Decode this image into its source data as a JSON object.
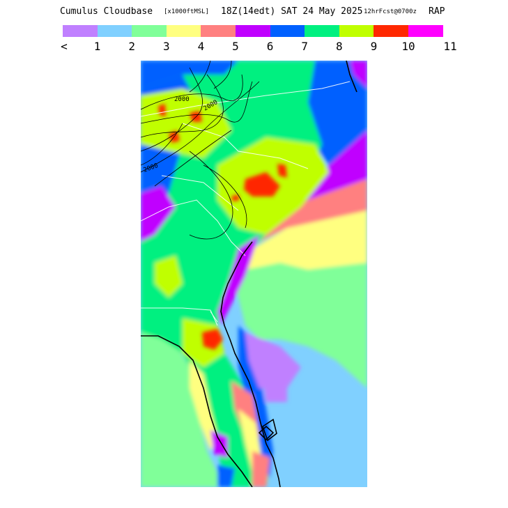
{
  "title": {
    "product": "Cumulus Cloudbase",
    "units": "[x1000ftMSL]",
    "valid": "18Z(14edt) SAT 24 May 2025",
    "forecast": "12hrFcst@0700z",
    "model": "RAP"
  },
  "legend": {
    "colors": [
      "#c080ff",
      "#80d0ff",
      "#80ff99",
      "#ffff80",
      "#ff8080",
      "#c000ff",
      "#0060ff",
      "#00f080",
      "#c0ff00",
      "#ff2800",
      "#ff00ff"
    ],
    "ticks": [
      "<",
      "1",
      "2",
      "3",
      "4",
      "5",
      "6",
      "7",
      "8",
      "9",
      "10",
      "11"
    ]
  },
  "map": {
    "contour_labels": [
      "2000",
      "2000",
      "2000"
    ]
  }
}
